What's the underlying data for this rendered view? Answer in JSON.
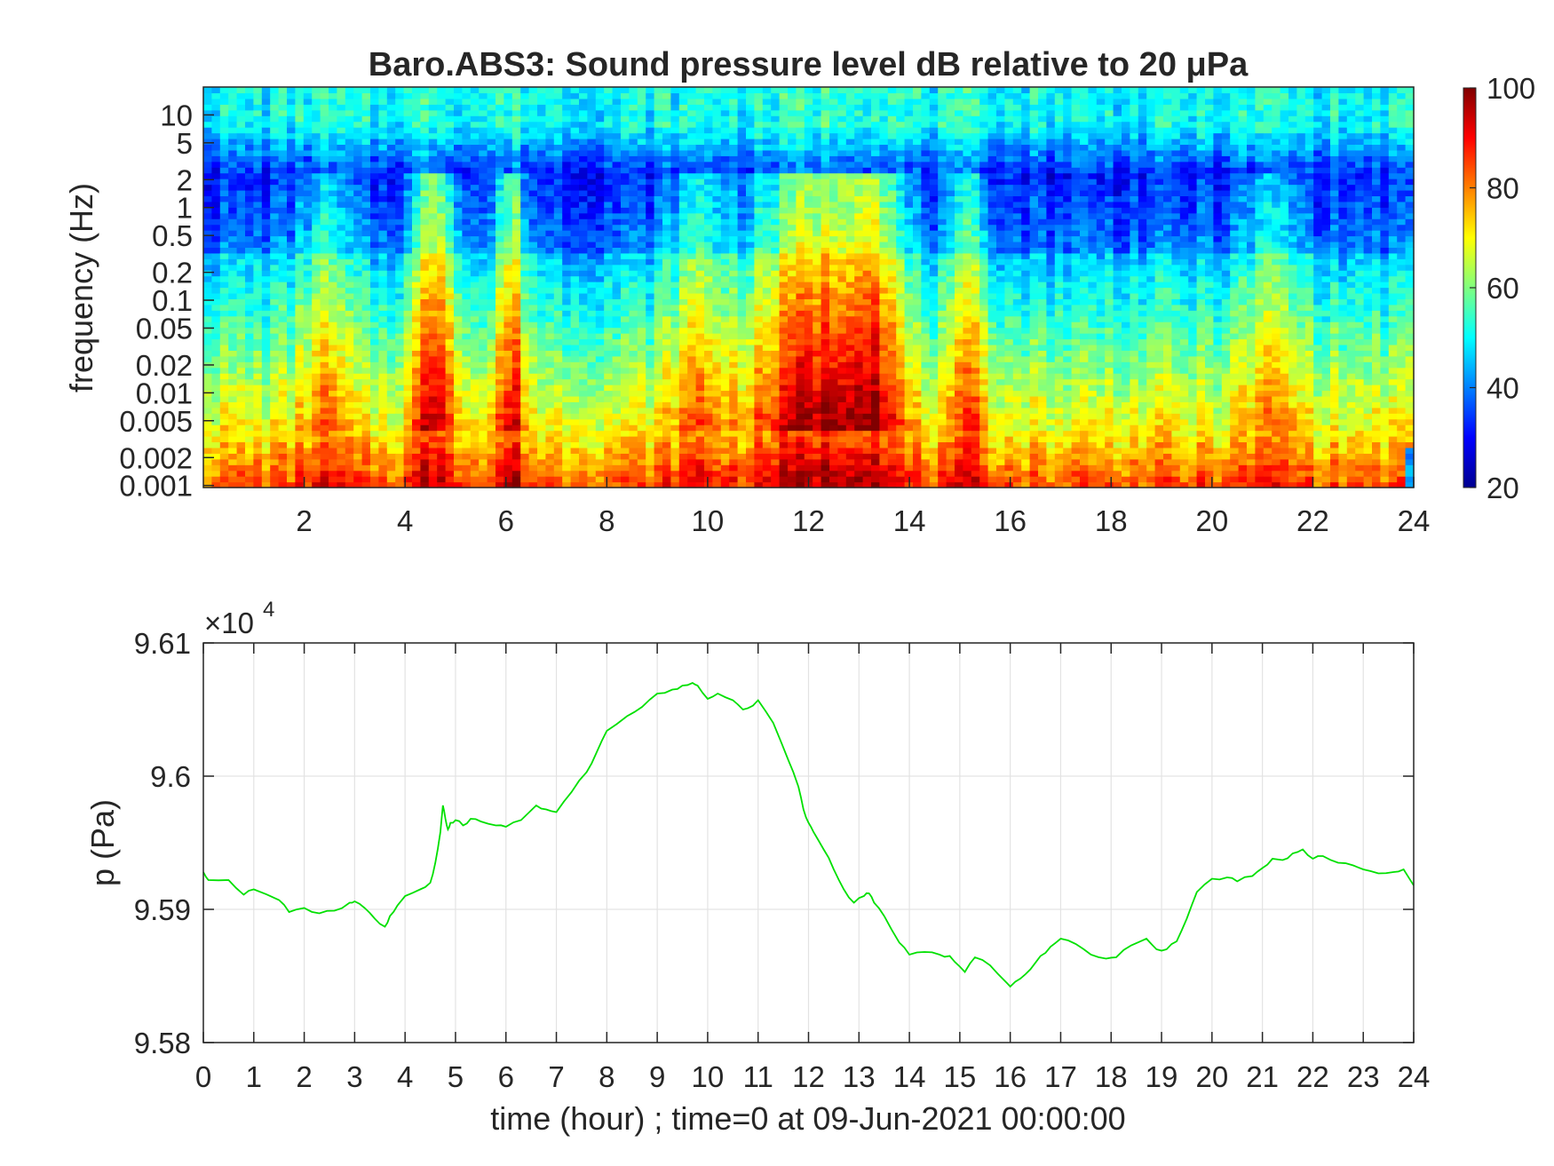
{
  "chart_data": [
    {
      "type": "heatmap",
      "title": "Baro.ABS3: Sound pressure level dB relative to 20 μPa",
      "xlabel": "",
      "ylabel": "frequency (Hz)",
      "x_range": [
        0,
        24
      ],
      "x_ticks": [
        2,
        4,
        6,
        8,
        10,
        12,
        14,
        16,
        18,
        20,
        22,
        24
      ],
      "y_scale": "log",
      "y_range": [
        0.00095,
        20
      ],
      "y_ticks": [
        0.001,
        0.002,
        0.005,
        0.01,
        0.02,
        0.05,
        0.1,
        0.2,
        0.5,
        1,
        2,
        5,
        10
      ],
      "y_tick_labels": [
        "0.001",
        "0.002",
        "0.005",
        "0.01",
        "0.02",
        "0.05",
        "0.1",
        "0.2",
        "0.5",
        "1",
        "2",
        "5",
        "10"
      ],
      "colormap": "jet",
      "colorbar": {
        "range": [
          20,
          100
        ],
        "ticks": [
          20,
          40,
          60,
          80,
          100
        ],
        "placement": "right"
      },
      "events": [
        {
          "time": 4.6,
          "strength": 1.0,
          "width": 0.45
        },
        {
          "time": 6.1,
          "strength": 0.85,
          "width": 0.3
        },
        {
          "time": 12.1,
          "strength": 1.0,
          "width": 1.2
        },
        {
          "time": 13.3,
          "strength": 0.8,
          "width": 0.6
        },
        {
          "time": 15.2,
          "strength": 0.55,
          "width": 0.4
        },
        {
          "time": 2.4,
          "strength": 0.45,
          "width": 0.5
        },
        {
          "time": 9.8,
          "strength": 0.5,
          "width": 0.6
        },
        {
          "time": 21.2,
          "strength": 0.4,
          "width": 0.6
        }
      ]
    },
    {
      "type": "line",
      "title": "",
      "xlabel": "time (hour) ; time=0 at 09-Jun-2021 00:00:00",
      "ylabel": "p (Pa)",
      "x_range": [
        0,
        24
      ],
      "x_ticks": [
        0,
        1,
        2,
        3,
        4,
        5,
        6,
        7,
        8,
        9,
        10,
        11,
        12,
        13,
        14,
        15,
        16,
        17,
        18,
        19,
        20,
        21,
        22,
        23,
        24
      ],
      "y_range": [
        95800,
        96100
      ],
      "y_ticks": [
        95800,
        95900,
        96000,
        96100
      ],
      "y_tick_labels": [
        "9.58",
        "9.59",
        "9.6",
        "9.61"
      ],
      "y_exponent_label": "×10",
      "y_exponent_power": "4",
      "grid": true,
      "series": [
        {
          "color": "#00e000",
          "x": [
            0,
            0.1,
            0.5,
            0.8,
            1.0,
            1.5,
            1.7,
            2.0,
            2.3,
            2.6,
            2.9,
            3.0,
            3.2,
            3.4,
            3.6,
            3.7,
            3.85,
            4.0,
            4.3,
            4.5,
            4.6,
            4.7,
            4.75,
            4.8,
            4.85,
            4.9,
            5.0,
            5.15,
            5.3,
            5.5,
            5.8,
            6.0,
            6.3,
            6.6,
            6.8,
            7.0,
            7.3,
            7.6,
            7.8,
            8.0,
            8.4,
            8.7,
            9.0,
            9.3,
            9.5,
            9.7,
            9.8,
            10.0,
            10.2,
            10.5,
            10.7,
            10.9,
            11.0,
            11.3,
            11.6,
            11.8,
            11.9,
            12.0,
            12.1,
            12.3,
            12.5,
            12.7,
            12.9,
            13.1,
            13.2,
            13.3,
            13.5,
            13.8,
            14.0,
            14.3,
            14.6,
            14.8,
            15.0,
            15.1,
            15.3,
            15.6,
            15.9,
            16.0,
            16.2,
            16.4,
            16.6,
            16.8,
            17.0,
            17.3,
            17.6,
            17.9,
            18.1,
            18.4,
            18.7,
            18.9,
            19.1,
            19.3,
            19.5,
            19.7,
            20.0,
            20.3,
            20.5,
            20.8,
            21.0,
            21.2,
            21.4,
            21.6,
            21.8,
            22.0,
            22.2,
            22.5,
            22.8,
            23.0,
            23.3,
            23.6,
            23.8,
            24.0
          ],
          "y": [
            95928,
            95922,
            95922,
            95911,
            95915,
            95907,
            95898,
            95901,
            95897,
            95899,
            95905,
            95906,
            95901,
            95893,
            95887,
            95895,
            95903,
            95910,
            95915,
            95920,
            95935,
            95958,
            95978,
            95968,
            95960,
            95965,
            95967,
            95963,
            95968,
            95966,
            95963,
            95962,
            95967,
            95978,
            95975,
            95973,
            95988,
            96003,
            96018,
            96034,
            96045,
            96052,
            96062,
            96065,
            96068,
            96070,
            96068,
            96058,
            96062,
            96057,
            96050,
            96053,
            96057,
            96040,
            96012,
            95992,
            95975,
            95965,
            95958,
            95945,
            95930,
            95915,
            95905,
            95910,
            95912,
            95905,
            95895,
            95875,
            95866,
            95868,
            95866,
            95865,
            95857,
            95853,
            95864,
            95858,
            95846,
            95842,
            95848,
            95855,
            95865,
            95872,
            95878,
            95874,
            95866,
            95863,
            95864,
            95873,
            95878,
            95870,
            95870,
            95876,
            95893,
            95913,
            95923,
            95924,
            95921,
            95925,
            95931,
            95938,
            95937,
            95942,
            95945,
            95938,
            95940,
            95935,
            95933,
            95930,
            95927,
            95928,
            95930,
            95918
          ]
        }
      ]
    }
  ]
}
